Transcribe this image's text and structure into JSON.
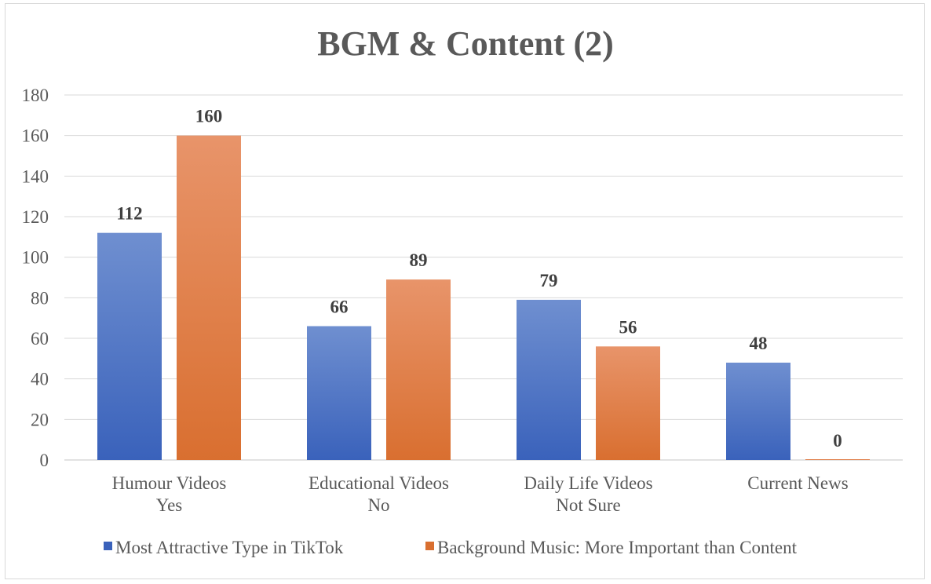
{
  "chart_data": {
    "type": "bar",
    "title": "BGM & Content (2)",
    "categories": [
      [
        "Humour Videos",
        "Yes"
      ],
      [
        "Educational Videos",
        "No"
      ],
      [
        "Daily Life Videos",
        "Not Sure"
      ],
      [
        "Current News"
      ]
    ],
    "series": [
      {
        "name": "Most Attractive Type in TikTok",
        "values": [
          112,
          66,
          79,
          48
        ]
      },
      {
        "name": "Background Music: More Important than Content",
        "values": [
          160,
          89,
          56,
          0
        ]
      }
    ],
    "ylim": [
      0,
      180
    ],
    "yticks": [
      0,
      20,
      40,
      60,
      80,
      100,
      120,
      140,
      160,
      180
    ],
    "grid": true,
    "legend": "bottom",
    "colors": {
      "series1_top": "#6f8fd0",
      "series1_bottom": "#3a62bb",
      "series2_top": "#e8946a",
      "series2_bottom": "#d96f30"
    }
  }
}
